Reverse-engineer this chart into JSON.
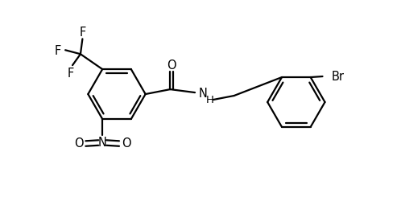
{
  "bg_color": "#ffffff",
  "line_color": "#000000",
  "line_width": 1.6,
  "font_size": 10.5,
  "figsize": [
    4.98,
    2.51
  ],
  "dpi": 100,
  "xlim": [
    0,
    10
  ],
  "ylim": [
    0,
    5
  ]
}
